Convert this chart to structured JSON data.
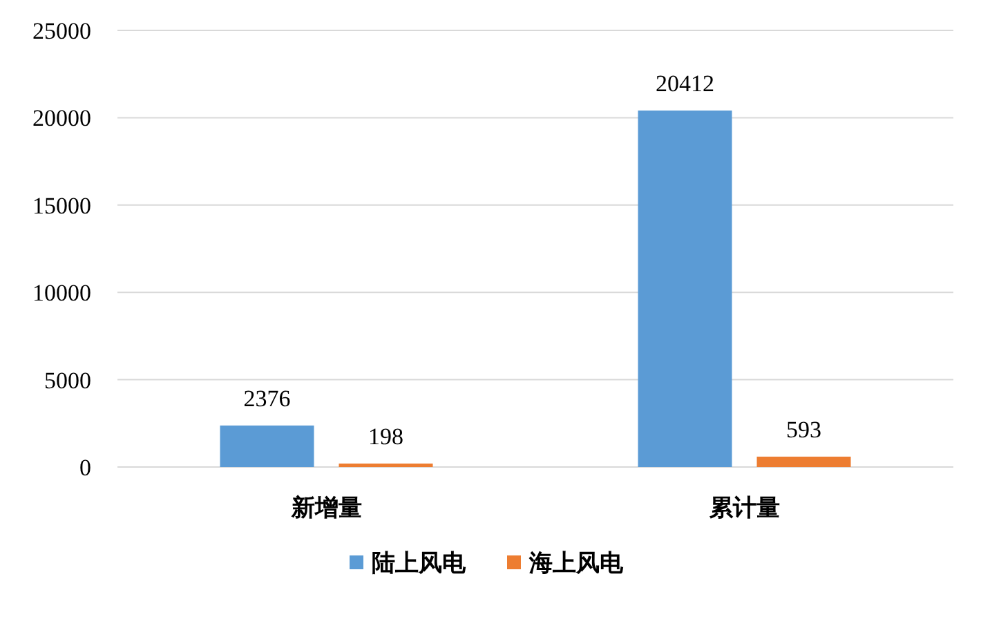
{
  "chart_data": {
    "type": "bar",
    "categories": [
      "新增量",
      "累计量"
    ],
    "series": [
      {
        "name": "陆上风电",
        "color": "#5b9bd5",
        "values": [
          2376,
          20412
        ]
      },
      {
        "name": "海上风电",
        "color": "#ed7d31",
        "values": [
          198,
          593
        ]
      }
    ],
    "ylim": [
      0,
      25000
    ],
    "yticks": [
      0,
      5000,
      10000,
      15000,
      20000,
      25000
    ],
    "grid": "y",
    "legend": "bottom",
    "data_labels": true
  }
}
